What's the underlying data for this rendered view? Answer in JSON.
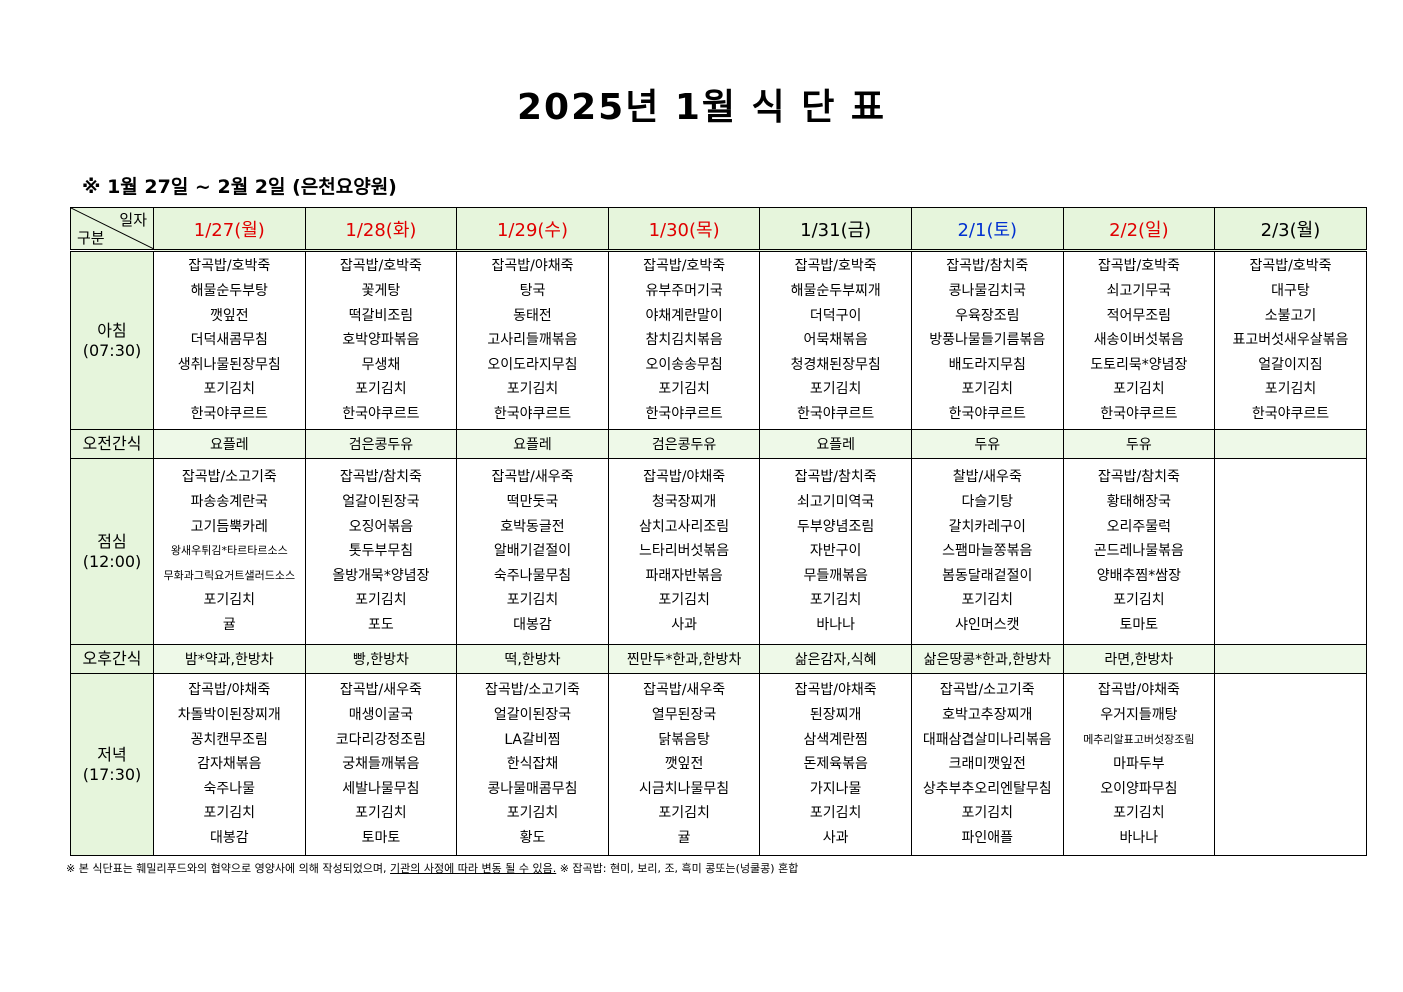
{
  "title": "2025년 1월 식 단 표",
  "subtitle": "※ 1월 27일 ~ 2월 2일 (은천요양원)",
  "corner": {
    "top": "일자",
    "bottom": "구분"
  },
  "colors": {
    "header_bg": "#e6f5dc",
    "weekday_red": "#e00000",
    "saturday_blue": "#0030d0"
  },
  "days": [
    {
      "label": "1/27(월)",
      "color": "red"
    },
    {
      "label": "1/28(화)",
      "color": "red"
    },
    {
      "label": "1/29(수)",
      "color": "red"
    },
    {
      "label": "1/30(목)",
      "color": "red"
    },
    {
      "label": "1/31(금)",
      "color": "black"
    },
    {
      "label": "2/1(토)",
      "color": "blue"
    },
    {
      "label": "2/2(일)",
      "color": "red"
    },
    {
      "label": "2/3(월)",
      "color": "black"
    }
  ],
  "rows": [
    {
      "type": "meal",
      "name": "아침",
      "time": "(07:30)",
      "cells": [
        [
          "잡곡밥/호박죽",
          "해물순두부탕",
          "깻잎전",
          "더덕새콤무침",
          "생취나물된장무침",
          "포기김치",
          "한국야쿠르트"
        ],
        [
          "잡곡밥/호박죽",
          "꽃게탕",
          "떡갈비조림",
          "호박양파볶음",
          "무생채",
          "포기김치",
          "한국야쿠르트"
        ],
        [
          "잡곡밥/야채죽",
          "탕국",
          "동태전",
          "고사리들깨볶음",
          "오이도라지무침",
          "포기김치",
          "한국야쿠르트"
        ],
        [
          "잡곡밥/호박죽",
          "유부주머기국",
          "야채계란말이",
          "참치김치볶음",
          "오이송송무침",
          "포기김치",
          "한국야쿠르트"
        ],
        [
          "잡곡밥/호박죽",
          "해물순두부찌개",
          "더덕구이",
          "어묵채볶음",
          "청경채된장무침",
          "포기김치",
          "한국야쿠르트"
        ],
        [
          "잡곡밥/참치죽",
          "콩나물김치국",
          "우육장조림",
          "방풍나물들기름볶음",
          "배도라지무침",
          "포기김치",
          "한국야쿠르트"
        ],
        [
          "잡곡밥/호박죽",
          "쇠고기무국",
          "적어무조림",
          "새송이버섯볶음",
          "도토리묵*양념장",
          "포기김치",
          "한국야쿠르트"
        ],
        [
          "잡곡밥/호박죽",
          "대구탕",
          "소불고기",
          "표고버섯새우살볶음",
          "얼갈이지짐",
          "포기김치",
          "한국야쿠르트"
        ]
      ]
    },
    {
      "type": "snack",
      "name": "오전간식",
      "cells": [
        "요플레",
        "검은콩두유",
        "요플레",
        "검은콩두유",
        "요플레",
        "두유",
        "두유",
        ""
      ]
    },
    {
      "type": "meal",
      "name": "점심",
      "time": "(12:00)",
      "cells": [
        [
          "잡곡밥/소고기죽",
          "파송송계란국",
          "고기듬뿍카레",
          "왕새우튀김*타르타르소스",
          "무화과그릭요거트샐러드소스",
          "포기김치",
          "귤"
        ],
        [
          "잡곡밥/참치죽",
          "얼갈이된장국",
          "오징어볶음",
          "톳두부무침",
          "올방개묵*양념장",
          "포기김치",
          "포도"
        ],
        [
          "잡곡밥/새우죽",
          "떡만둣국",
          "호박동글전",
          "알배기겉절이",
          "숙주나물무침",
          "포기김치",
          "대봉감"
        ],
        [
          "잡곡밥/야채죽",
          "청국장찌개",
          "삼치고사리조림",
          "느타리버섯볶음",
          "파래자반볶음",
          "포기김치",
          "사과"
        ],
        [
          "잡곡밥/참치죽",
          "쇠고기미역국",
          "두부양념조림",
          "자반구이",
          "무들깨볶음",
          "포기김치",
          "바나나"
        ],
        [
          "찰밥/새우죽",
          "다슬기탕",
          "갈치카레구이",
          "스팸마늘쫑볶음",
          "봄동달래겉절이",
          "포기김치",
          "샤인머스캣"
        ],
        [
          "잡곡밥/참치죽",
          "황태해장국",
          "오리주물럭",
          "곤드레나물볶음",
          "양배추찜*쌈장",
          "포기김치",
          "토마토"
        ],
        []
      ]
    },
    {
      "type": "snack",
      "name": "오후간식",
      "cells": [
        "밤*약과,한방차",
        "빵,한방차",
        "떡,한방차",
        "찐만두*한과,한방차",
        "삶은감자,식혜",
        "삶은땅콩*한과,한방차",
        "라면,한방차",
        ""
      ]
    },
    {
      "type": "meal",
      "name": "저녁",
      "time": "(17:30)",
      "cells": [
        [
          "잡곡밥/야채죽",
          "차돌박이된장찌개",
          "꽁치캔무조림",
          "감자채볶음",
          "숙주나물",
          "포기김치",
          "대봉감"
        ],
        [
          "잡곡밥/새우죽",
          "매생이굴국",
          "코다리강정조림",
          "궁채들깨볶음",
          "세발나물무침",
          "포기김치",
          "토마토"
        ],
        [
          "잡곡밥/소고기죽",
          "얼갈이된장국",
          "LA갈비찜",
          "한식잡채",
          "콩나물매콤무침",
          "포기김치",
          "황도"
        ],
        [
          "잡곡밥/새우죽",
          "열무된장국",
          "닭볶음탕",
          "깻잎전",
          "시금치나물무침",
          "포기김치",
          "귤"
        ],
        [
          "잡곡밥/야채죽",
          "된장찌개",
          "삼색계란찜",
          "돈제육볶음",
          "가지나물",
          "포기김치",
          "사과"
        ],
        [
          "잡곡밥/소고기죽",
          "호박고추장찌개",
          "대패삼겹살미나리볶음",
          "크래미깻잎전",
          "상추부추오리엔탈무침",
          "포기김치",
          "파인애플"
        ],
        [
          "잡곡밥/야채죽",
          "우거지들깨탕",
          "메추리알표고버섯장조림",
          "마파두부",
          "오이양파무침",
          "포기김치",
          "바나나"
        ],
        []
      ]
    }
  ],
  "footer": {
    "part1": "※ 본 식단표는 훼밀리푸드와의 협약으로 영양사에 의해 작성되었으며, ",
    "underlined": "기관의 사정에 따라 변동 될 수 있음.",
    "part2": " ※ 잡곡밥: 현미, 보리, 조, 흑미 콩또는(넝쿨콩) 혼합"
  }
}
